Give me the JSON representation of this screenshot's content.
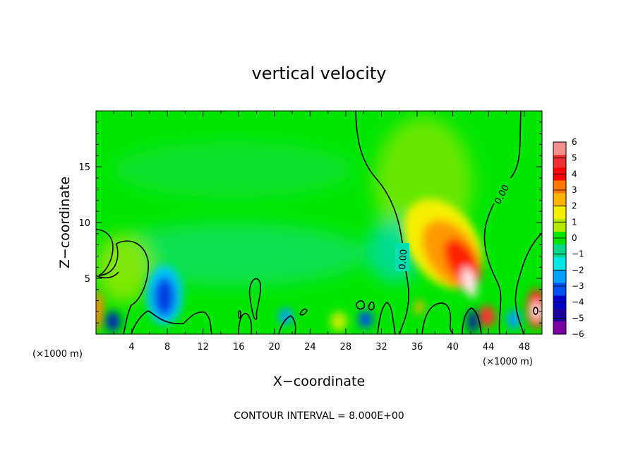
{
  "chart_data": {
    "type": "heatmap",
    "title": "vertical velocity",
    "xlabel": "X−coordinate",
    "ylabel": "Z−coordinate",
    "x_unit_left": "(×1000 m)",
    "x_unit_right": "(×1000 m)",
    "xlim": [
      0,
      50
    ],
    "ylim": [
      0,
      20
    ],
    "x_ticks": [
      4,
      8,
      12,
      16,
      20,
      24,
      28,
      32,
      36,
      40,
      44,
      48
    ],
    "x_tick_labels": [
      "4",
      "8",
      "12",
      "16",
      "20",
      "24",
      "28",
      "32",
      "36",
      "40",
      "44",
      "48"
    ],
    "y_ticks": [
      5,
      10,
      15
    ],
    "y_tick_labels": [
      "5",
      "10",
      "15"
    ],
    "colorbar": {
      "levels": [
        6,
        5,
        4,
        3,
        2,
        1,
        0,
        -1,
        -2,
        -3,
        -4,
        -5,
        -6
      ],
      "labels": [
        "6",
        "5",
        "4",
        "3",
        "2",
        "1",
        "0",
        "−1",
        "−2",
        "−3",
        "−4",
        "−5",
        "−6"
      ],
      "colors": [
        "#f28f8f",
        "#f03030",
        "#ff0000",
        "#ff7800",
        "#ffb400",
        "#f5f000",
        "#b4eb00",
        "#00e600",
        "#00d68c",
        "#00e6e6",
        "#00a0ff",
        "#0050f0",
        "#0000c8",
        "#1e00a0",
        "#7800a0"
      ]
    },
    "contour_labels": [
      "0.00",
      "0.00"
    ],
    "note": "CONTOUR INTERVAL = 8.000E+00"
  }
}
